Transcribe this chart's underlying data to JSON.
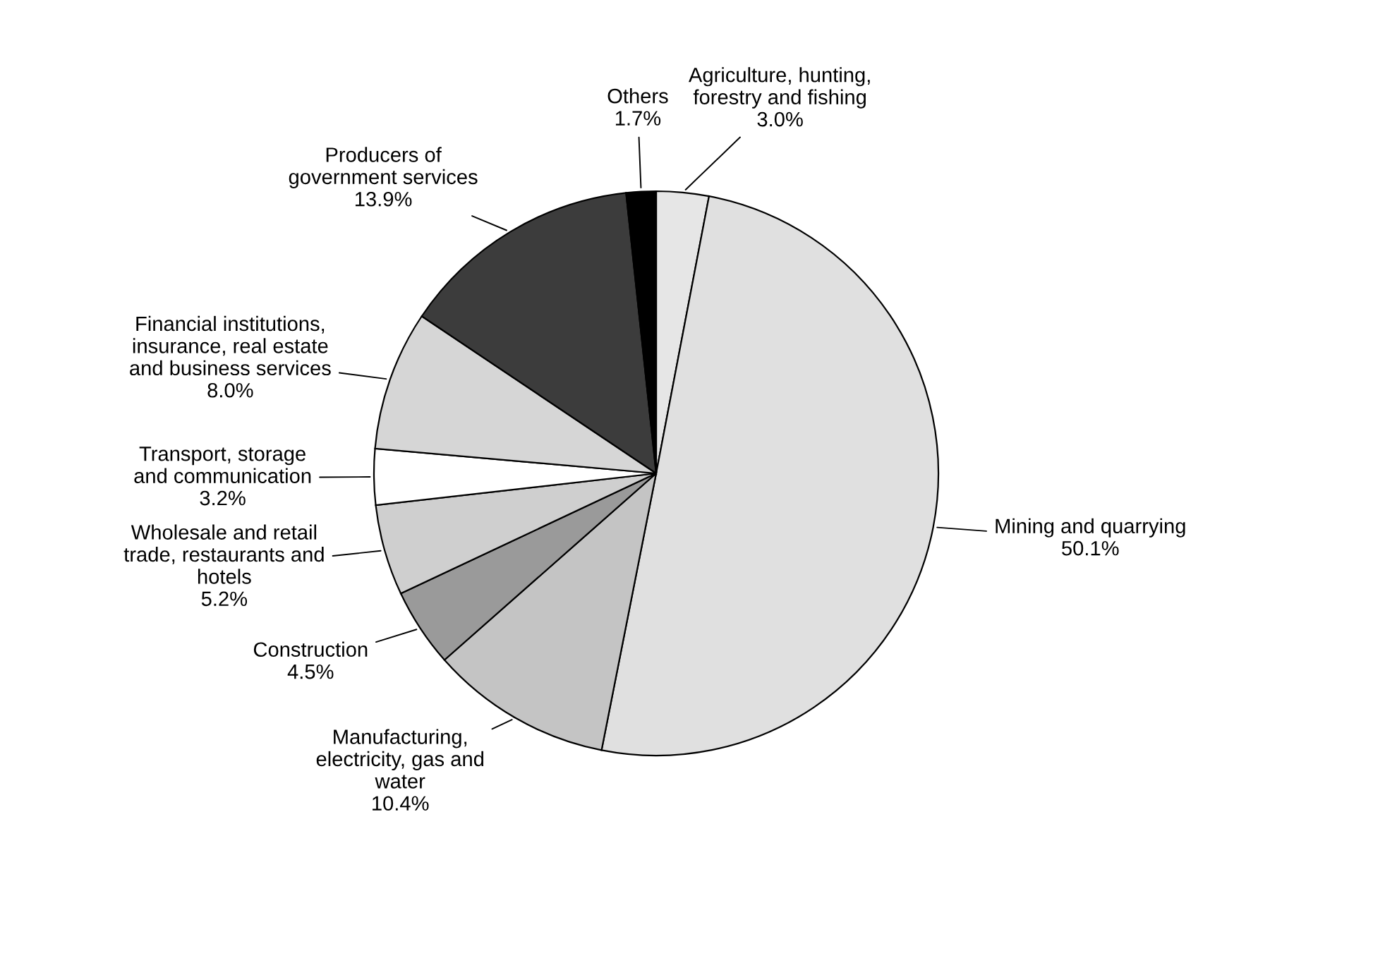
{
  "chart_data": {
    "type": "pie",
    "categories": [
      "Agriculture, hunting,\nforestry and fishing",
      "Mining and quarrying",
      "Manufacturing,\nelectricity, gas and\nwater",
      "Construction",
      "Wholesale and retail\ntrade, restaurants and\nhotels",
      "Transport, storage\nand communication",
      "Financial institutions,\ninsurance, real estate\nand business services",
      "Producers of\ngovernment services",
      "Others"
    ],
    "values": [
      3.0,
      50.1,
      10.4,
      4.5,
      5.2,
      3.2,
      8.0,
      13.9,
      1.7
    ],
    "value_labels": [
      "3.0%",
      "50.1%",
      "10.4%",
      "4.5%",
      "5.2%",
      "3.2%",
      "8.0%",
      "13.9%",
      "1.7%"
    ],
    "colors": [
      "#e6e6e6",
      "#e0e0e0",
      "#c4c4c4",
      "#9a9a9a",
      "#cfcfcf",
      "#ffffff",
      "#d6d6d6",
      "#3c3c3c",
      "#000000"
    ]
  }
}
